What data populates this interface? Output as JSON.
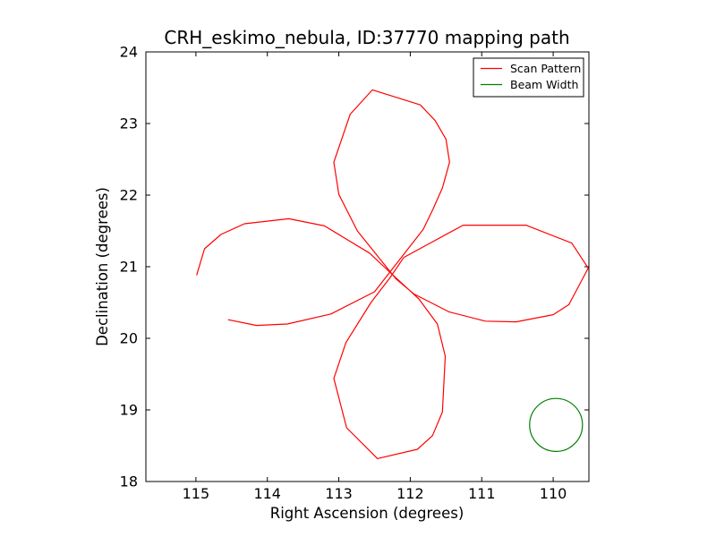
{
  "title": "CRH_eskimo_nebula, ID:37770 mapping path",
  "axes": {
    "x": {
      "label": "Right Ascension (degrees)",
      "ticks": [
        115,
        114,
        113,
        112,
        111,
        110
      ],
      "range": [
        115.7,
        109.5
      ],
      "inverted": true
    },
    "y": {
      "label": "Declination (degrees)",
      "ticks": [
        18,
        19,
        20,
        21,
        22,
        23,
        24
      ],
      "range": [
        18,
        24
      ]
    }
  },
  "legend": {
    "entries": [
      {
        "label": "Scan Pattern",
        "color": "#ff0000"
      },
      {
        "label": "Beam Width",
        "color": "#008000"
      }
    ]
  },
  "colors": {
    "scan_pattern": "#ff0000",
    "beam_width": "#008000",
    "frame": "#000000",
    "background": "#ffffff"
  },
  "chart_data": {
    "type": "line",
    "title": "CRH_eskimo_nebula, ID:37770 mapping path",
    "xlabel": "Right Ascension (degrees)",
    "ylabel": "Declination (degrees)",
    "xlim": [
      115.7,
      109.5
    ],
    "ylim": [
      18,
      24
    ],
    "x_axis_inverted": true,
    "grid": false,
    "legend_position": "upper right",
    "series": [
      {
        "name": "Scan Pattern",
        "color": "#ff0000",
        "kind": "path",
        "description": "Four-petal rose (daisy) scan path, open gap on the 115-RA petal",
        "points": [
          [
            114.99,
            20.88
          ],
          [
            114.88,
            21.25
          ],
          [
            114.65,
            21.45
          ],
          [
            114.32,
            21.6
          ],
          [
            113.7,
            21.67
          ],
          [
            113.2,
            21.57
          ],
          [
            112.57,
            21.19
          ],
          [
            112.26,
            20.9
          ],
          [
            111.88,
            20.55
          ],
          [
            111.62,
            20.2
          ],
          [
            111.51,
            19.75
          ],
          [
            111.55,
            18.97
          ],
          [
            111.69,
            18.64
          ],
          [
            111.9,
            18.45
          ],
          [
            112.46,
            18.32
          ],
          [
            112.89,
            18.75
          ],
          [
            113.07,
            19.44
          ],
          [
            112.9,
            19.94
          ],
          [
            112.55,
            20.5
          ],
          [
            112.28,
            20.85
          ],
          [
            112.09,
            21.13
          ],
          [
            111.26,
            21.58
          ],
          [
            110.38,
            21.58
          ],
          [
            109.74,
            21.33
          ],
          [
            109.51,
            20.98
          ],
          [
            109.78,
            20.47
          ],
          [
            110.0,
            20.33
          ],
          [
            110.52,
            20.23
          ],
          [
            110.95,
            20.24
          ],
          [
            111.46,
            20.37
          ],
          [
            111.95,
            20.62
          ],
          [
            112.2,
            20.83
          ],
          [
            112.74,
            21.5
          ],
          [
            113.0,
            22.01
          ],
          [
            113.07,
            22.46
          ],
          [
            112.84,
            23.13
          ],
          [
            112.53,
            23.47
          ],
          [
            111.86,
            23.26
          ],
          [
            111.65,
            23.04
          ],
          [
            111.5,
            22.78
          ],
          [
            111.45,
            22.46
          ],
          [
            111.55,
            22.1
          ],
          [
            111.68,
            21.81
          ],
          [
            111.82,
            21.52
          ],
          [
            112.5,
            20.65
          ],
          [
            113.11,
            20.34
          ],
          [
            113.72,
            20.2
          ],
          [
            114.15,
            20.18
          ],
          [
            114.55,
            20.26
          ]
        ]
      },
      {
        "name": "Beam Width",
        "color": "#008000",
        "kind": "circle",
        "center": [
          109.96,
          18.79
        ],
        "radius_deg": 0.37
      }
    ]
  }
}
